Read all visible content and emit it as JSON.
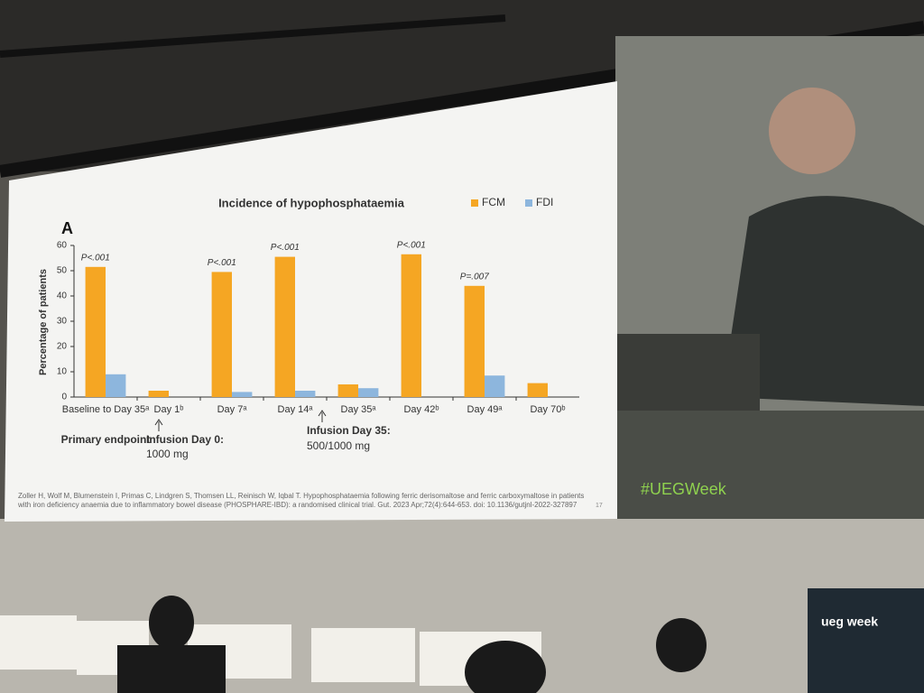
{
  "chart_data": {
    "type": "bar",
    "panel_label": "A",
    "title": "Incidence of hypophosphataemia",
    "y_label": "Percentage of patients",
    "categories": [
      "Baseline to Day 35ᵃ",
      "Day 1ᵇ",
      "Day 7ᵃ",
      "Day 14ᵃ",
      "Day 35ᵃ",
      "Day 42ᵇ",
      "Day 49ᵃ",
      "Day 70ᵇ"
    ],
    "series": [
      {
        "name": "FCM",
        "color": "#f5a623",
        "values": [
          51.5,
          2.5,
          49.5,
          55.5,
          5,
          56.5,
          44,
          5.5
        ]
      },
      {
        "name": "FDI",
        "color": "#8db6dd",
        "values": [
          9,
          0,
          2,
          2.5,
          3.5,
          0,
          8.5,
          0
        ]
      }
    ],
    "p_values": [
      "P<.001",
      null,
      "P<.001",
      "P<.001",
      null,
      "P<.001",
      "P=.007",
      null
    ],
    "ylim": [
      0,
      60
    ],
    "yticks": [
      0,
      10,
      20,
      30,
      40,
      50,
      60
    ],
    "legend": "top-right",
    "primary_endpoint_note": "Primary endpoint",
    "infusion_notes": [
      {
        "label": "Infusion Day 0:",
        "dose": "1000 mg"
      },
      {
        "label": "Infusion Day 35:",
        "dose": "500/1000 mg"
      }
    ],
    "citation": "Zoller H, Wolf M, Blumenstein I, Primas C, Lindgren S, Thomsen LL, Reinisch W, Iqbal T. Hypophosphataemia following ferric derisomaltose and ferric carboxymaltose in patients with iron deficiency anaemia due to inflammatory bowel disease (PHOSPHARE-IBD): a randomised clinical trial. Gut. 2023 Apr;72(4):644-653. doi: 10.1136/gutjnl-2022-327897",
    "slide_number": "17"
  },
  "screen_hashtag": "#UEGWeek",
  "podium_logo": "ueg week"
}
